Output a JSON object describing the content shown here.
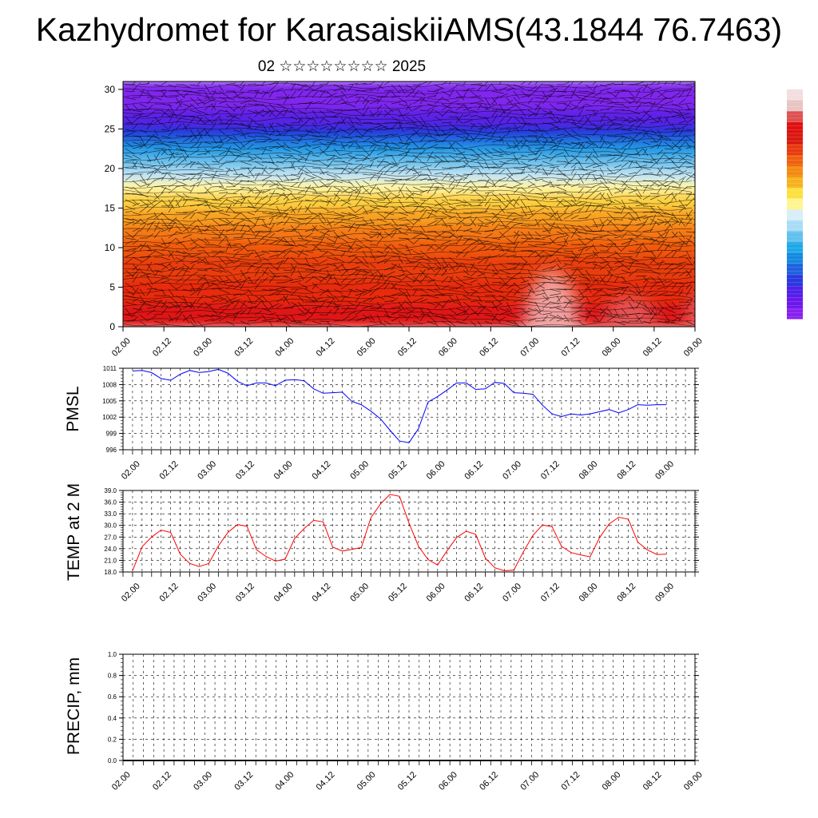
{
  "title": "Kazhydromet for KarasaiskiiAMS(43.1844 76.7463)",
  "subtitle": "02 ☆☆☆☆☆☆☆☆ 2025",
  "colors": {
    "pmsl_line": "#0000ff",
    "temp_line": "#ff0000",
    "precip_line": "#000000",
    "colorbar": [
      "#f2dede",
      "#e8c4c4",
      "#e05050",
      "#e01010",
      "#d81a10",
      "#e83a10",
      "#f06010",
      "#f48a10",
      "#f8b020",
      "#fce040",
      "#fff590",
      "#d8eef8",
      "#a8dcf5",
      "#60c0ee",
      "#20a8e8",
      "#1488e0",
      "#2060e0",
      "#2a38e0",
      "#5020e8",
      "#6a18ec",
      "#8a20f0"
    ]
  },
  "chart_data": [
    {
      "name": "cross-section",
      "type": "heatmap",
      "x_ticks": [
        "02.00",
        "02.12",
        "03.00",
        "03.12",
        "04.00",
        "04.12",
        "05.00",
        "05.12",
        "06.00",
        "06.12",
        "07.00",
        "07.12",
        "08.00",
        "08.12",
        "09.00"
      ],
      "y_ticks": [
        "0",
        "5",
        "10",
        "15",
        "20",
        "25",
        "30"
      ],
      "ylim": [
        0,
        31
      ],
      "bands": [
        {
          "from": 0,
          "to": 3,
          "color": "#e01818"
        },
        {
          "from": 3,
          "to": 6,
          "color": "#e82a10"
        },
        {
          "from": 6,
          "to": 9,
          "color": "#ea3c10"
        },
        {
          "from": 9,
          "to": 11,
          "color": "#f05810"
        },
        {
          "from": 11,
          "to": 13,
          "color": "#f47818"
        },
        {
          "from": 13,
          "to": 15,
          "color": "#f8a020"
        },
        {
          "from": 15,
          "to": 17,
          "color": "#fcd040"
        },
        {
          "from": 17,
          "to": 18.5,
          "color": "#fff6a0"
        },
        {
          "from": 18.5,
          "to": 20,
          "color": "#c0e4f4"
        },
        {
          "from": 20,
          "to": 21.5,
          "color": "#70c4ee"
        },
        {
          "from": 21.5,
          "to": 23,
          "color": "#2aa0e6"
        },
        {
          "from": 23,
          "to": 24.2,
          "color": "#1a70e0"
        },
        {
          "from": 24.2,
          "to": 25.5,
          "color": "#2530dc"
        },
        {
          "from": 25.5,
          "to": 27.5,
          "color": "#5a20e6"
        },
        {
          "from": 27.5,
          "to": 31,
          "color": "#8028ee"
        }
      ],
      "hotspots": [
        {
          "x": 5.25,
          "y_top": 7,
          "color": "#f4b8b8"
        },
        {
          "x": 7.2,
          "y_top": 5,
          "color": "#e86060"
        },
        {
          "x": 6.2,
          "y_top": 4,
          "color": "#e86060"
        }
      ]
    },
    {
      "name": "pmsl",
      "type": "line",
      "ylabel": "PMSL",
      "x_ticks": [
        "02.00",
        "02.12",
        "03.00",
        "03.12",
        "04.00",
        "04.12",
        "05.00",
        "05.12",
        "06.00",
        "06.12",
        "07.00",
        "07.12",
        "08.00",
        "08.12",
        "09.00"
      ],
      "y_ticks": [
        "996",
        "999",
        "1002",
        "1005",
        "1008",
        "1011"
      ],
      "ylim": [
        996,
        1011
      ],
      "x": [
        0,
        0.125,
        0.25,
        0.375,
        0.5,
        0.625,
        0.75,
        0.875,
        1,
        1.125,
        1.25,
        1.375,
        1.5,
        1.625,
        1.75,
        1.875,
        2,
        2.125,
        2.25,
        2.375,
        2.5,
        2.625,
        2.75,
        2.875,
        3,
        3.125,
        3.25,
        3.375,
        3.5,
        3.625,
        3.75,
        3.875,
        4,
        4.125,
        4.25,
        4.375,
        4.5,
        4.625,
        4.75,
        4.875,
        5,
        5.125,
        5.25,
        5.375,
        5.5,
        5.625,
        5.75,
        5.875,
        6,
        6.125,
        6.25,
        6.375,
        6.5,
        6.625,
        6.75,
        6.875,
        7
      ],
      "values": [
        1010.5,
        1010.6,
        1010.2,
        1009.1,
        1008.8,
        1009.9,
        1010.6,
        1010.2,
        1010.4,
        1010.8,
        1010.1,
        1008.6,
        1007.8,
        1008.3,
        1008.3,
        1007.8,
        1008.8,
        1008.9,
        1008.7,
        1007.2,
        1006.4,
        1006.5,
        1006.6,
        1004.9,
        1004.3,
        1003.1,
        1001.7,
        999.6,
        997.6,
        997.3,
        999.9,
        1004.8,
        1005.8,
        1007.0,
        1008.3,
        1008.3,
        1007.1,
        1007.2,
        1008.4,
        1008.2,
        1006.5,
        1006.4,
        1006.2,
        1004.2,
        1002.6,
        1002.1,
        1002.6,
        1002.4,
        1002.6,
        1003.0,
        1003.4,
        1002.8,
        1003.4,
        1004.3,
        1004.2,
        1004.3,
        1004.3
      ]
    },
    {
      "name": "temp",
      "type": "line",
      "ylabel": "TEMP at 2 M",
      "x_ticks": [
        "02.00",
        "02.12",
        "03.00",
        "03.12",
        "04.00",
        "04.12",
        "05.00",
        "05.12",
        "06.00",
        "06.12",
        "07.00",
        "07.12",
        "08.00",
        "08.12",
        "09.00"
      ],
      "y_ticks": [
        "18.0",
        "21.0",
        "24.0",
        "27.0",
        "30.0",
        "33.0",
        "36.0",
        "39.0"
      ],
      "ylim": [
        18,
        39
      ],
      "x": [
        0,
        0.125,
        0.25,
        0.375,
        0.5,
        0.625,
        0.75,
        0.875,
        1,
        1.125,
        1.25,
        1.375,
        1.5,
        1.625,
        1.75,
        1.875,
        2,
        2.125,
        2.25,
        2.375,
        2.5,
        2.625,
        2.75,
        2.875,
        3,
        3.125,
        3.25,
        3.375,
        3.5,
        3.625,
        3.75,
        3.875,
        4,
        4.125,
        4.25,
        4.375,
        4.5,
        4.625,
        4.75,
        4.875,
        5,
        5.125,
        5.25,
        5.375,
        5.5,
        5.625,
        5.75,
        5.875,
        6,
        6.125,
        6.25,
        6.375,
        6.5,
        6.625,
        6.75,
        6.875,
        7
      ],
      "values": [
        18.3,
        24.5,
        27.0,
        28.8,
        28.2,
        22.6,
        20.2,
        19.4,
        20.2,
        24.7,
        28.2,
        30.2,
        29.8,
        23.7,
        22.0,
        20.8,
        21.3,
        26.6,
        29.2,
        31.3,
        30.9,
        24.4,
        23.4,
        23.8,
        24.3,
        32.0,
        35.5,
        38.0,
        37.5,
        30.6,
        24.6,
        21.2,
        19.8,
        23.5,
        26.9,
        28.5,
        27.7,
        21.6,
        19.1,
        18.3,
        18.5,
        23.2,
        27.4,
        30.1,
        29.7,
        24.6,
        23.0,
        22.4,
        21.9,
        26.9,
        30.4,
        32.1,
        31.6,
        25.7,
        23.7,
        22.5,
        22.6
      ]
    },
    {
      "name": "precip",
      "type": "line",
      "ylabel": "PRECIP, mm",
      "x_ticks": [
        "02.00",
        "02.12",
        "03.00",
        "03.12",
        "04.00",
        "04.12",
        "05.00",
        "05.12",
        "06.00",
        "06.12",
        "07.00",
        "07.12",
        "08.00",
        "08.12",
        "09.00"
      ],
      "y_ticks": [
        "0.0",
        "0.2",
        "0.4",
        "0.6",
        "0.8",
        "1.0"
      ],
      "ylim": [
        0,
        1
      ],
      "x": [
        0,
        1,
        2,
        3,
        4,
        5,
        6,
        7
      ],
      "values": [
        0,
        0,
        0,
        0,
        0,
        0,
        0,
        0
      ]
    }
  ]
}
